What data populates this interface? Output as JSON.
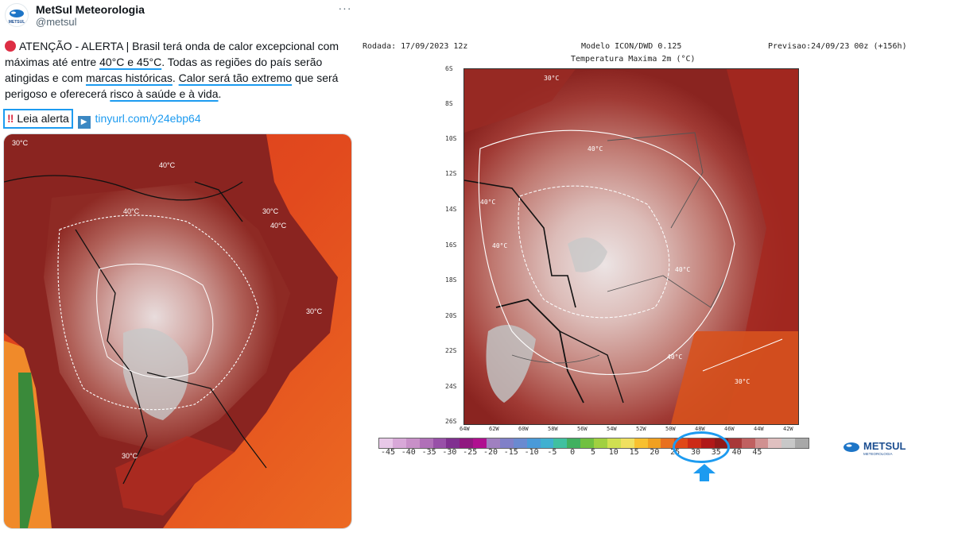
{
  "tweet": {
    "author_name": "MetSul Meteorologia",
    "author_handle": "@metsul",
    "avatar_text": "METSUL",
    "more_label": "···",
    "text": {
      "p1": "ATENÇÃO - ALERTA | Brasil terá onda de calor excepcional com máximas até entre ",
      "u1": "40°C e 45°C",
      "p2": ". Todas as regiões do país serão atingidas e com ",
      "u2": "marcas históricas",
      "p3": ". ",
      "u3": "Calor será tão extremo",
      "p4": " que será perigoso e oferecerá ",
      "u4": "risco à saúde e à vida",
      "p5": "."
    },
    "alert_label": "Leia alerta",
    "bang": "‼",
    "link": "tinyurl.com/y24ebp64"
  },
  "left_map": {
    "labels": {
      "n1": "40°C",
      "n2": "40°C",
      "n3": "40°C",
      "n4": "30°C",
      "n5": "30°C",
      "n6": "30°C",
      "n7": "30°C"
    }
  },
  "forecast_map": {
    "run": "Rodada: 17/09/2023 12z",
    "model": "Modelo ICON/DWD 0.125",
    "variable": "Temperatura Maxima 2m (°C)",
    "forecast": "Previsao:24/09/23 00z (+156h)",
    "lat_labels": [
      "6S",
      "8S",
      "10S",
      "12S",
      "14S",
      "16S",
      "18S",
      "20S",
      "22S",
      "24S",
      "26S"
    ],
    "lon_labels": [
      "64W",
      "62W",
      "60W",
      "58W",
      "56W",
      "54W",
      "52W",
      "50W",
      "48W",
      "46W",
      "44W",
      "42W"
    ],
    "contour_labels": {
      "a": "30°C",
      "b": "40°C",
      "c": "40°C",
      "d": "40°C",
      "e": "40°C",
      "f": "40°C",
      "g": "30°C"
    },
    "colorbar_labels": [
      "-45",
      "-40",
      "-35",
      "-30",
      "-25",
      "-20",
      "-15",
      "-10",
      "-5",
      "0",
      "5",
      "10",
      "15",
      "20",
      "25",
      "30",
      "35",
      "40",
      "45"
    ],
    "colorbar_colors": [
      "#e8c8e8",
      "#d8a8d8",
      "#c890c8",
      "#b070b8",
      "#9850a8",
      "#803090",
      "#901880",
      "#b01090",
      "#a080c0",
      "#8080c8",
      "#6a8ad0",
      "#4a9ad8",
      "#40b0d0",
      "#40c0a0",
      "#40b060",
      "#70c040",
      "#a0d040",
      "#d0e050",
      "#f0e060",
      "#f8c030",
      "#f0a020",
      "#e87020",
      "#e04818",
      "#cc2a16",
      "#b01818",
      "#901818",
      "#a83838",
      "#c06060",
      "#d09090",
      "#e0c0c0",
      "#c8c8c8",
      "#a8a8a8"
    ],
    "logo_text": "METSUL",
    "logo_subtext": "METEOROLOGIA"
  }
}
